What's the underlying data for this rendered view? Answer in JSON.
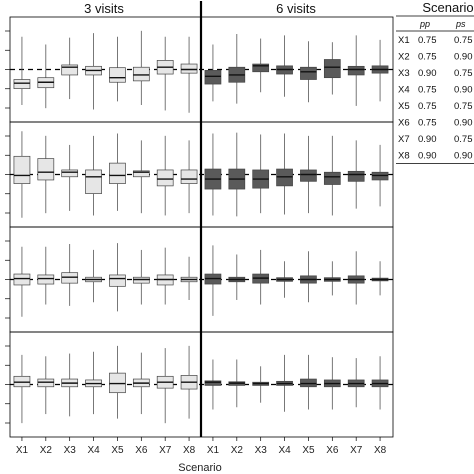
{
  "chart_data": {
    "type": "boxplot",
    "headers": [
      "3 visits",
      "6 visits"
    ],
    "xlabel": "Scenario",
    "categories": [
      "X1",
      "X2",
      "X3",
      "X4",
      "X5",
      "X6",
      "X7",
      "X8"
    ],
    "reference_line": 0,
    "ylim": [
      -1,
      1
    ],
    "grid": false,
    "colors": {
      "three_visits_fill": "#e6e6e6",
      "six_visits_fill": "#5a5a5a",
      "reference": "#000000"
    },
    "panels": [
      {
        "three_visits": [
          {
            "min": -0.78,
            "q1": -0.42,
            "median": -0.3,
            "q3": -0.22,
            "max": 0.72
          },
          {
            "min": -0.85,
            "q1": -0.4,
            "median": -0.28,
            "q3": -0.18,
            "max": 0.55
          },
          {
            "min": -0.65,
            "q1": -0.12,
            "median": 0.05,
            "q3": 0.1,
            "max": 0.7
          },
          {
            "min": -0.88,
            "q1": -0.12,
            "median": -0.02,
            "q3": 0.07,
            "max": 0.8
          },
          {
            "min": -0.7,
            "q1": -0.28,
            "median": -0.18,
            "q3": 0.04,
            "max": 0.72
          },
          {
            "min": -0.78,
            "q1": -0.25,
            "median": -0.12,
            "q3": 0.05,
            "max": 0.85
          },
          {
            "min": -0.9,
            "q1": -0.1,
            "median": 0.05,
            "q3": 0.2,
            "max": 0.72
          },
          {
            "min": -0.95,
            "q1": -0.08,
            "median": 0.0,
            "q3": 0.12,
            "max": 0.72
          }
        ],
        "six_visits": [
          {
            "min": -0.7,
            "q1": -0.32,
            "median": -0.15,
            "q3": -0.02,
            "max": 0.55
          },
          {
            "min": -0.75,
            "q1": -0.28,
            "median": -0.12,
            "q3": 0.05,
            "max": 0.78
          },
          {
            "min": -0.5,
            "q1": -0.05,
            "median": 0.08,
            "q3": 0.12,
            "max": 0.68
          },
          {
            "min": -0.6,
            "q1": -0.1,
            "median": 0.0,
            "q3": 0.08,
            "max": 0.75
          },
          {
            "min": -0.72,
            "q1": -0.22,
            "median": -0.05,
            "q3": 0.05,
            "max": 0.62
          },
          {
            "min": -0.55,
            "q1": -0.18,
            "median": 0.05,
            "q3": 0.22,
            "max": 0.6
          },
          {
            "min": -0.8,
            "q1": -0.12,
            "median": 0.0,
            "q3": 0.07,
            "max": 0.75
          },
          {
            "min": -0.7,
            "q1": -0.08,
            "median": 0.0,
            "q3": 0.08,
            "max": 0.65
          }
        ]
      },
      {
        "three_visits": [
          {
            "min": -0.95,
            "q1": -0.2,
            "median": -0.02,
            "q3": 0.4,
            "max": 0.95
          },
          {
            "min": -0.85,
            "q1": -0.12,
            "median": 0.05,
            "q3": 0.35,
            "max": 0.85
          },
          {
            "min": -0.8,
            "q1": -0.05,
            "median": 0.05,
            "q3": 0.1,
            "max": 0.65
          },
          {
            "min": -0.9,
            "q1": -0.42,
            "median": -0.05,
            "q3": 0.1,
            "max": 0.85
          },
          {
            "min": -0.8,
            "q1": -0.2,
            "median": -0.02,
            "q3": 0.25,
            "max": 0.9
          },
          {
            "min": -0.85,
            "q1": -0.05,
            "median": 0.05,
            "q3": 0.08,
            "max": 0.75
          },
          {
            "min": -0.9,
            "q1": -0.25,
            "median": -0.1,
            "q3": 0.1,
            "max": 0.85
          },
          {
            "min": -0.85,
            "q1": -0.2,
            "median": -0.1,
            "q3": 0.1,
            "max": 0.75
          }
        ],
        "six_visits": [
          {
            "min": -0.9,
            "q1": -0.32,
            "median": -0.1,
            "q3": 0.12,
            "max": 0.9
          },
          {
            "min": -0.92,
            "q1": -0.32,
            "median": -0.1,
            "q3": 0.12,
            "max": 0.92
          },
          {
            "min": -0.85,
            "q1": -0.3,
            "median": -0.1,
            "q3": 0.1,
            "max": 0.88
          },
          {
            "min": -0.88,
            "q1": -0.25,
            "median": -0.05,
            "q3": 0.12,
            "max": 0.9
          },
          {
            "min": -0.85,
            "q1": -0.15,
            "median": 0.0,
            "q3": 0.1,
            "max": 0.85
          },
          {
            "min": -0.9,
            "q1": -0.22,
            "median": -0.05,
            "q3": 0.05,
            "max": 0.85
          },
          {
            "min": -0.75,
            "q1": -0.15,
            "median": 0.0,
            "q3": 0.07,
            "max": 0.75
          },
          {
            "min": -0.7,
            "q1": -0.12,
            "median": -0.02,
            "q3": 0.05,
            "max": 0.65
          }
        ]
      },
      {
        "three_visits": [
          {
            "min": -0.82,
            "q1": -0.12,
            "median": 0.02,
            "q3": 0.12,
            "max": 0.72
          },
          {
            "min": -0.55,
            "q1": -0.1,
            "median": 0.02,
            "q3": 0.1,
            "max": 0.72
          },
          {
            "min": -0.58,
            "q1": -0.08,
            "median": 0.05,
            "q3": 0.15,
            "max": 0.78
          },
          {
            "min": -0.5,
            "q1": -0.05,
            "median": 0.0,
            "q3": 0.05,
            "max": 0.65
          },
          {
            "min": -0.7,
            "q1": -0.15,
            "median": 0.02,
            "q3": 0.1,
            "max": 0.8
          },
          {
            "min": -0.55,
            "q1": -0.08,
            "median": 0.0,
            "q3": 0.05,
            "max": 0.65
          },
          {
            "min": -0.55,
            "q1": -0.12,
            "median": 0.0,
            "q3": 0.1,
            "max": 0.7
          },
          {
            "min": -0.45,
            "q1": -0.05,
            "median": 0.0,
            "q3": 0.05,
            "max": 0.5
          }
        ],
        "six_visits": [
          {
            "min": -0.8,
            "q1": -0.1,
            "median": 0.02,
            "q3": 0.12,
            "max": 0.75
          },
          {
            "min": -0.45,
            "q1": -0.05,
            "median": 0.0,
            "q3": 0.05,
            "max": 0.55
          },
          {
            "min": -0.55,
            "q1": -0.08,
            "median": 0.03,
            "q3": 0.12,
            "max": 0.65
          },
          {
            "min": -0.4,
            "q1": -0.04,
            "median": 0.0,
            "q3": 0.04,
            "max": 0.4
          },
          {
            "min": -0.5,
            "q1": -0.08,
            "median": 0.0,
            "q3": 0.08,
            "max": 0.62
          },
          {
            "min": -0.35,
            "q1": -0.04,
            "median": 0.0,
            "q3": 0.04,
            "max": 0.4
          },
          {
            "min": -0.55,
            "q1": -0.08,
            "median": 0.0,
            "q3": 0.08,
            "max": 0.62
          },
          {
            "min": -0.35,
            "q1": -0.03,
            "median": 0.0,
            "q3": 0.03,
            "max": 0.4
          }
        ]
      },
      {
        "three_visits": [
          {
            "min": -0.85,
            "q1": -0.05,
            "median": 0.05,
            "q3": 0.18,
            "max": 0.65
          },
          {
            "min": -0.65,
            "q1": -0.05,
            "median": 0.05,
            "q3": 0.12,
            "max": 0.62
          },
          {
            "min": -0.7,
            "q1": -0.05,
            "median": 0.03,
            "q3": 0.12,
            "max": 0.68
          },
          {
            "min": -0.65,
            "q1": -0.05,
            "median": 0.02,
            "q3": 0.1,
            "max": 0.72
          },
          {
            "min": -0.75,
            "q1": -0.18,
            "median": 0.02,
            "q3": 0.25,
            "max": 0.85
          },
          {
            "min": -0.65,
            "q1": -0.05,
            "median": 0.03,
            "q3": 0.12,
            "max": 0.7
          },
          {
            "min": -0.85,
            "q1": -0.08,
            "median": 0.05,
            "q3": 0.18,
            "max": 0.8
          },
          {
            "min": -0.75,
            "q1": -0.1,
            "median": 0.05,
            "q3": 0.2,
            "max": 0.85
          }
        ],
        "six_visits": [
          {
            "min": -0.55,
            "q1": -0.02,
            "median": 0.05,
            "q3": 0.08,
            "max": 0.55
          },
          {
            "min": -0.5,
            "q1": -0.02,
            "median": 0.03,
            "q3": 0.06,
            "max": 0.55
          },
          {
            "min": -0.4,
            "q1": -0.02,
            "median": 0.02,
            "q3": 0.05,
            "max": 0.4
          },
          {
            "min": -0.6,
            "q1": -0.02,
            "median": 0.02,
            "q3": 0.07,
            "max": 0.65
          },
          {
            "min": -0.55,
            "q1": -0.05,
            "median": 0.02,
            "q3": 0.12,
            "max": 0.65
          },
          {
            "min": -0.55,
            "q1": -0.05,
            "median": 0.02,
            "q3": 0.1,
            "max": 0.6
          },
          {
            "min": -0.5,
            "q1": -0.05,
            "median": 0.02,
            "q3": 0.1,
            "max": 0.58
          },
          {
            "min": -0.55,
            "q1": -0.05,
            "median": 0.02,
            "q3": 0.1,
            "max": 0.62
          }
        ]
      }
    ]
  },
  "scenario_table": {
    "title": "Scenario",
    "columns": [
      "",
      "pp",
      "ps"
    ],
    "rows": [
      [
        "X1",
        "0.75",
        "0.75"
      ],
      [
        "X2",
        "0.75",
        "0.90"
      ],
      [
        "X3",
        "0.90",
        "0.75"
      ],
      [
        "X4",
        "0.75",
        "0.90"
      ],
      [
        "X5",
        "0.75",
        "0.75"
      ],
      [
        "X6",
        "0.75",
        "0.90"
      ],
      [
        "X7",
        "0.90",
        "0.75"
      ],
      [
        "X8",
        "0.90",
        "0.90"
      ]
    ]
  }
}
